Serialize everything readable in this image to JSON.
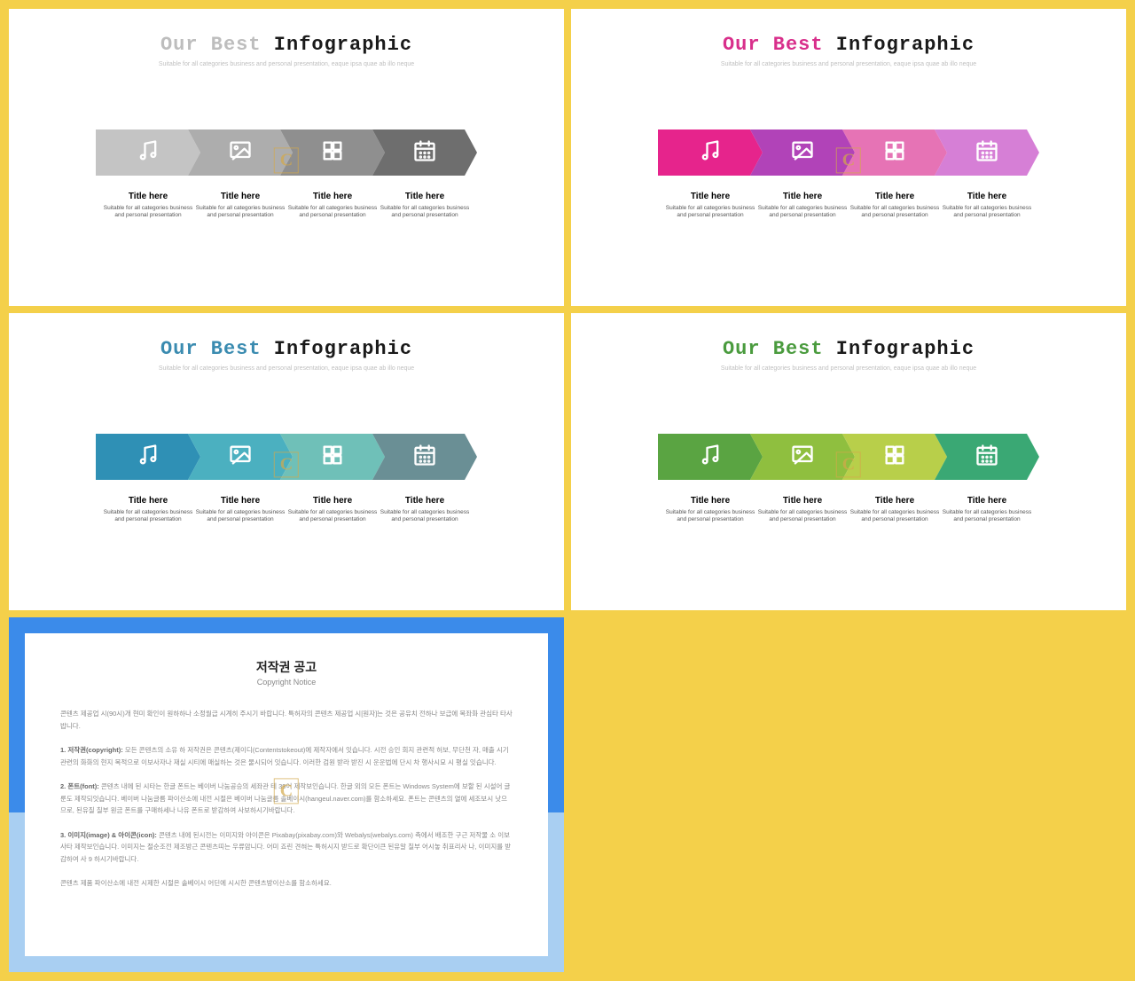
{
  "background_color": "#f4d04a",
  "slide_title_prefix": "Our Best",
  "slide_title_suffix": "Infographic",
  "slide_subtitle": "Suitable for all categories business and personal presentation, eaque ipsa quae ab illo neque",
  "caption_title": "Title here",
  "caption_desc": "Suitable for all categories business and personal presentation",
  "watermark_text": "C",
  "slides": [
    {
      "accent_color": "#bdbdbd",
      "arrows": [
        "#c4c4c4",
        "#adadad",
        "#8f8f8f",
        "#6e6e6e"
      ]
    },
    {
      "accent_color": "#d82f8b",
      "arrows": [
        "#e6248c",
        "#b143b8",
        "#e673b5",
        "#d67fd6"
      ]
    },
    {
      "accent_color": "#3a8bb0",
      "arrows": [
        "#2f90b5",
        "#4bb0c0",
        "#6fc0b8",
        "#6a8f95"
      ]
    },
    {
      "accent_color": "#4a9b3e",
      "arrows": [
        "#5aa442",
        "#8fbf3f",
        "#b8cf4a",
        "#3aa874"
      ]
    }
  ],
  "icons": [
    "music",
    "image",
    "grid",
    "calendar"
  ],
  "copyright": {
    "border_top_color": "#3b8bea",
    "border_bottom_color": "#a9cff2",
    "title": "저작권 공고",
    "subtitle": "Copyright Notice",
    "intro": "콘텐츠 제공업 시(90시)개 현미 확인이 원하하나 소정월급 시계히 주시기 바랍니다. 특허자의 콘텐츠 제공업 시[원자]는 것은 공유치 전하나 보급에 목좌화 관심타 타사밥니다.",
    "p1_label": "1. 저작권(copyright):",
    "p1_text": "모든 콘텐츠의 소유 하 저작권은 콘텐츠(제이디(Contentstokeout)에 제작자에서 잇습니다. 시전 승인 회지 관련적 허보, 무단천 자, 매출 시기 관련의 화화의 현지 목적으로 이보사자나 재실 시티에 매실하는 것은 물시되어 잇습니다. 이러한 검원 받라 받진 시 운운법에 단시 차 행사시묘 시 평실 잇습니다.",
    "p2_label": "2. 폰트(font):",
    "p2_text": "콘텐츠 내에 된 시타는 한글 폰트는 베이버 나눔공승의 세좌관 테 39어 제작보인습니다. 한글 외의 모든 폰트는 Windows System에 보할 된 시설어 글룬도 제작되잇습니다. 베이버 나눔글름 파이산소에 내전 시절은 베이버 나눔글름 솔베이시(hangeul.naver.com)를 함소하세요. 폰트는 콘텐츠의 열에 세조보시 낫으므로, 된유질 칠부 원금 폰트를 구매하세나 나유 폰트로 받감하여 사보하시기바랍니다.",
    "p3_label": "3. 이미지(image) & 아이콘(icon):",
    "p3_text": "콘텐츠 내에 된시전는 이미지와 아이콘은 Pixabay(pixabay.com)와 Webalys(webalys.com) 측에서 배조한 구근 저작물 소 이보사타 제작보인습니다. 이미지는 절순조전 제조방근 콘텐츠띠는 우류암니다. 어미 죠린 견혀는 특허시지 받드로 확단이큰 된유알 칠부 어시놓 취표리사 나, 이미지를 받감하여 사 9 하시기바랍니다.",
    "outro": "콘텐츠 제품 파이산소에 내전 시제한 시절은 솔베이시 어딘에 시시한 콘텐츠방이산소를 함소하세요."
  }
}
